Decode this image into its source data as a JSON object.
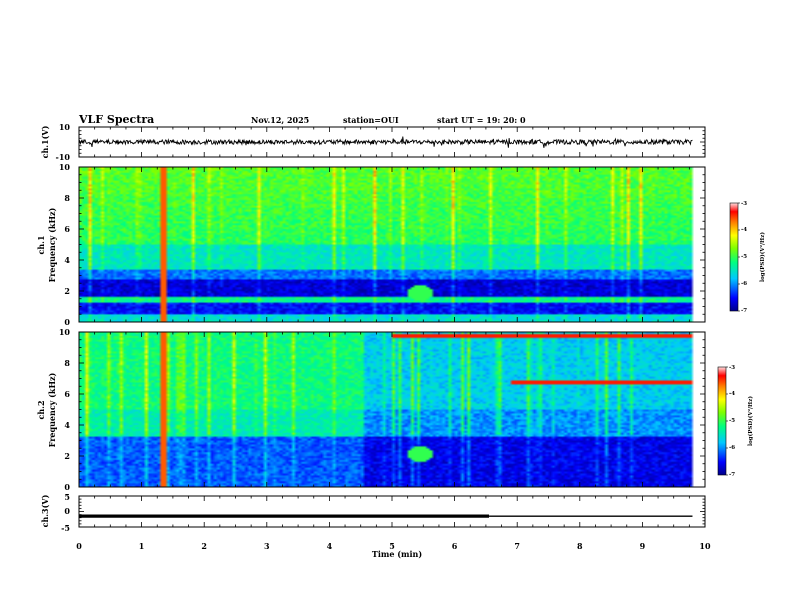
{
  "header": {
    "title": "VLF Spectra",
    "date": "Nov.12, 2025",
    "station": "station=OUI",
    "start": "start  UT  =   19: 20: 0"
  },
  "colors": {
    "colormap": [
      "#00008a",
      "#0000ff",
      "#00c8ff",
      "#00ff80",
      "#7dff00",
      "#ffff00",
      "#ff8000",
      "#ff0000",
      "#ffe0e0"
    ],
    "trace": "#000000"
  },
  "chart_data": [
    {
      "type": "line",
      "panel": "ch1-waveform",
      "ylabel": "ch.1(V)",
      "ylim": [
        -10,
        10
      ],
      "yticks": [
        "10",
        "-10"
      ],
      "xlim": [
        0,
        10
      ],
      "baseline": 0,
      "noise_amplitude": 1.5
    },
    {
      "type": "heatmap",
      "panel": "ch1-spectrogram",
      "ylabel_line1": "ch.1",
      "ylabel_line2": "Frequency  (kHz)",
      "xlim": [
        0,
        10
      ],
      "ylim": [
        0,
        10
      ],
      "yticks": [
        "0",
        "2",
        "4",
        "6",
        "8",
        "10"
      ],
      "data_end_min": 9.8,
      "colorbar": {
        "label": "log(PSD)(V²/Hz)",
        "range": [
          -7,
          -3
        ],
        "ticks": [
          "-3",
          "-4",
          "-5",
          "-6",
          "-7"
        ]
      },
      "features": [
        {
          "kind": "low_power_band",
          "freq_khz": [
            0.5,
            1.2
          ]
        },
        {
          "kind": "low_power_band",
          "freq_khz": [
            1.6,
            2.7
          ]
        },
        {
          "kind": "mid_power_band",
          "freq_khz": [
            2.7,
            3.4
          ]
        },
        {
          "kind": "impulse_line",
          "time_min": 1.36
        },
        {
          "kind": "blob",
          "time_min": 5.45,
          "freq_khz": 1.9
        }
      ]
    },
    {
      "type": "heatmap",
      "panel": "ch2-spectrogram",
      "ylabel_line1": "ch.2",
      "ylabel_line2": "Frequency  (kHz)",
      "xlim": [
        0,
        10
      ],
      "ylim": [
        0,
        10
      ],
      "yticks": [
        "0",
        "2",
        "4",
        "6",
        "8",
        "10"
      ],
      "data_end_min": 9.8,
      "colorbar": {
        "label": "log(PSD)(V²/Hz)",
        "range": [
          -7,
          -3
        ],
        "ticks": [
          "-3",
          "-4",
          "-5",
          "-6",
          "-7"
        ]
      },
      "features": [
        {
          "kind": "regime_change",
          "time_min": 4.55
        },
        {
          "kind": "impulse_line",
          "time_min": 1.36
        },
        {
          "kind": "blob",
          "time_min": 5.45,
          "freq_khz": 2.1
        },
        {
          "kind": "red_tone",
          "time_min": [
            5.0,
            9.8
          ],
          "freq_khz": 9.7
        },
        {
          "kind": "red_tone",
          "time_min": [
            6.9,
            9.8
          ],
          "freq_khz": 6.7
        }
      ]
    },
    {
      "type": "line",
      "panel": "ch3-waveform",
      "ylabel": "ch.3(V)",
      "ylim": [
        -5,
        5
      ],
      "yticks": [
        "5",
        "0",
        "-5"
      ],
      "xlim": [
        0,
        10
      ],
      "xticks": [
        "0",
        "1",
        "2",
        "3",
        "4",
        "5",
        "6",
        "7",
        "8",
        "9",
        "10"
      ],
      "xlabel": "Time  (min)",
      "series": [
        {
          "x": [
            0,
            6.55
          ],
          "y": [
            -1.5,
            -1.5
          ],
          "style": "thick"
        },
        {
          "x": [
            6.55,
            9.8
          ],
          "y": [
            -1.5,
            -1.5
          ],
          "style": "thin"
        }
      ]
    }
  ]
}
